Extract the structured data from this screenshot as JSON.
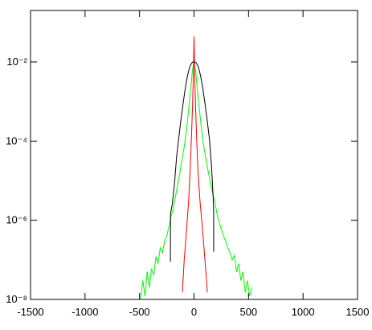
{
  "chart_data": {
    "type": "line",
    "ylog": true,
    "xlim": [
      -1500,
      1500
    ],
    "xticks": [
      -1500,
      -1000,
      -500,
      0,
      500,
      1000,
      1500
    ],
    "ylim": [
      1e-08,
      0.2
    ],
    "yticks": [
      {
        "value": 1e-08,
        "label": "10⁻⁸"
      },
      {
        "value": 1e-06,
        "label": "10⁻⁶"
      },
      {
        "value": 0.0001,
        "label": "10⁻⁴"
      },
      {
        "value": 0.01,
        "label": "10⁻²"
      }
    ],
    "series": [
      {
        "color": "#00ff00",
        "x": [
          -490,
          -470,
          -450,
          -430,
          -410,
          -390,
          -370,
          -350,
          -330,
          -310,
          -290,
          -270,
          -250,
          -230,
          -210,
          -190,
          -170,
          -150,
          -130,
          -110,
          -90,
          -70,
          -50,
          -30,
          -15,
          0,
          15,
          30,
          50,
          70,
          90,
          110,
          130,
          150,
          170,
          190,
          210,
          230,
          250,
          270,
          290,
          310,
          330,
          350,
          370,
          390,
          410,
          430,
          450,
          470,
          490,
          510,
          530
        ],
        "values": [
          1e-08,
          3e-08,
          1.2e-08,
          5e-08,
          2e-08,
          6e-08,
          4e-08,
          1.2e-07,
          8e-08,
          2e-07,
          1.5e-07,
          3e-07,
          4e-07,
          7e-07,
          1.3e-06,
          2e-06,
          4e-06,
          8e-06,
          1.6e-05,
          3.5e-05,
          7e-05,
          0.00018,
          0.0006,
          0.002,
          0.006,
          0.01,
          0.006,
          0.002,
          0.0006,
          0.00018,
          7e-05,
          3.5e-05,
          1.7e-05,
          9e-06,
          5e-06,
          3e-06,
          1.5e-06,
          9e-07,
          6e-07,
          4e-07,
          3e-07,
          2e-07,
          1.5e-07,
          1e-07,
          1.3e-07,
          5e-08,
          8e-08,
          3e-08,
          5e-08,
          1.5e-08,
          3e-08,
          1.2e-08,
          2e-08
        ]
      },
      {
        "color": "#000000",
        "x": [
          -217,
          -215,
          -200,
          -180,
          -160,
          -140,
          -120,
          -100,
          -80,
          -60,
          -40,
          -20,
          0,
          20,
          40,
          60,
          80,
          100,
          120,
          140,
          160,
          175,
          180,
          180
        ],
        "values": [
          9e-08,
          1.5e-06,
          2.5e-06,
          8e-06,
          4e-05,
          0.00012,
          0.00035,
          0.0009,
          0.0022,
          0.0045,
          0.0075,
          0.0095,
          0.0105,
          0.0095,
          0.0075,
          0.0045,
          0.0022,
          0.0009,
          0.00035,
          0.00012,
          2.5e-05,
          4e-06,
          1.5e-06,
          1.6e-07
        ]
      },
      {
        "color": "#ff0000",
        "x": [
          -107,
          -90,
          -70,
          -50,
          -35,
          -25,
          -15,
          -8,
          0,
          8,
          15,
          25,
          35,
          55,
          80,
          100,
          122
        ],
        "values": [
          1.5e-08,
          1e-07,
          5e-07,
          3e-06,
          2e-05,
          0.0001,
          0.0006,
          0.003,
          0.044,
          0.003,
          0.0006,
          0.0001,
          2e-05,
          3e-06,
          5e-07,
          1e-07,
          1.5e-08
        ]
      }
    ]
  }
}
